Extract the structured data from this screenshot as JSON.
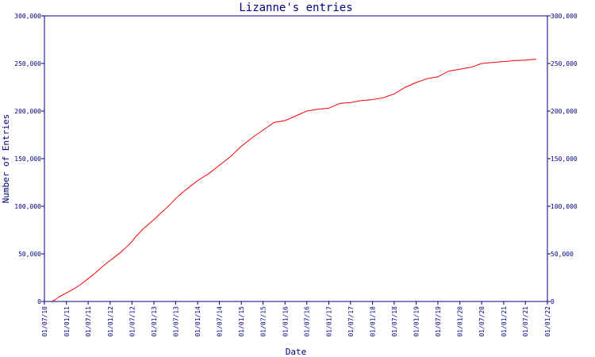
{
  "chart_data": {
    "type": "line",
    "title": "Lizanne's entries",
    "xlabel": "Date",
    "ylabel": "Number of Entries",
    "ylim": [
      0,
      300000
    ],
    "y_ticks": [
      0,
      50000,
      100000,
      150000,
      200000,
      250000,
      300000
    ],
    "y_tick_labels": [
      "0",
      "50,000",
      "100,000",
      "150,000",
      "200,000",
      "250,000",
      "300,000"
    ],
    "x_tick_labels": [
      "01/07/10",
      "01/01/11",
      "01/07/11",
      "01/01/12",
      "01/07/12",
      "01/01/13",
      "01/07/13",
      "01/01/14",
      "01/07/14",
      "01/01/15",
      "01/07/15",
      "01/01/16",
      "01/07/16",
      "01/01/17",
      "01/07/17",
      "01/01/18",
      "01/07/18",
      "01/01/19",
      "01/07/19",
      "01/01/20",
      "01/07/20",
      "01/01/21",
      "01/07/21",
      "01/01/22"
    ],
    "grid": false,
    "colors": {
      "line": "#ff0000",
      "axes": "#000080",
      "text": "#000080",
      "background": "#ffffff"
    },
    "series": [
      {
        "x": [
          "01/09/10",
          "01/10/10",
          "01/11/10",
          "01/01/11",
          "01/03/11",
          "01/05/11",
          "01/07/11",
          "01/09/11",
          "01/11/11",
          "01/01/12",
          "01/02/12",
          "01/04/12",
          "01/06/12",
          "01/07/12",
          "01/08/12",
          "01/10/12",
          "01/01/13",
          "01/03/13",
          "01/05/13",
          "01/07/13",
          "01/09/13",
          "01/11/13",
          "01/01/14",
          "01/04/14",
          "01/07/14",
          "01/10/14",
          "01/01/15",
          "01/04/15",
          "01/07/15",
          "01/10/15",
          "01/01/16",
          "01/04/16",
          "01/07/16",
          "01/10/16",
          "01/01/17",
          "01/04/17",
          "01/07/17",
          "01/10/17",
          "01/01/18",
          "01/04/18",
          "01/07/18",
          "01/10/18",
          "01/01/19",
          "01/04/19",
          "01/07/19",
          "01/10/19",
          "01/01/20",
          "01/04/20",
          "01/07/20",
          "01/10/20",
          "01/01/21",
          "01/04/21",
          "01/07/21",
          "01/10/21"
        ],
        "y": [
          0,
          2000,
          5000,
          9000,
          13000,
          18000,
          24000,
          30000,
          37000,
          43000,
          46000,
          52000,
          59000,
          63000,
          68000,
          76000,
          86000,
          93000,
          100000,
          108000,
          115000,
          121000,
          127000,
          134000,
          143000,
          152000,
          163000,
          172000,
          180000,
          188000,
          190000,
          195000,
          200000,
          202000,
          203000,
          208000,
          209000,
          211000,
          212000,
          214000,
          218000,
          225000,
          230000,
          234000,
          236000,
          242000,
          244000,
          246000,
          250000,
          251000,
          252000,
          253000,
          253500,
          254500
        ]
      }
    ]
  }
}
